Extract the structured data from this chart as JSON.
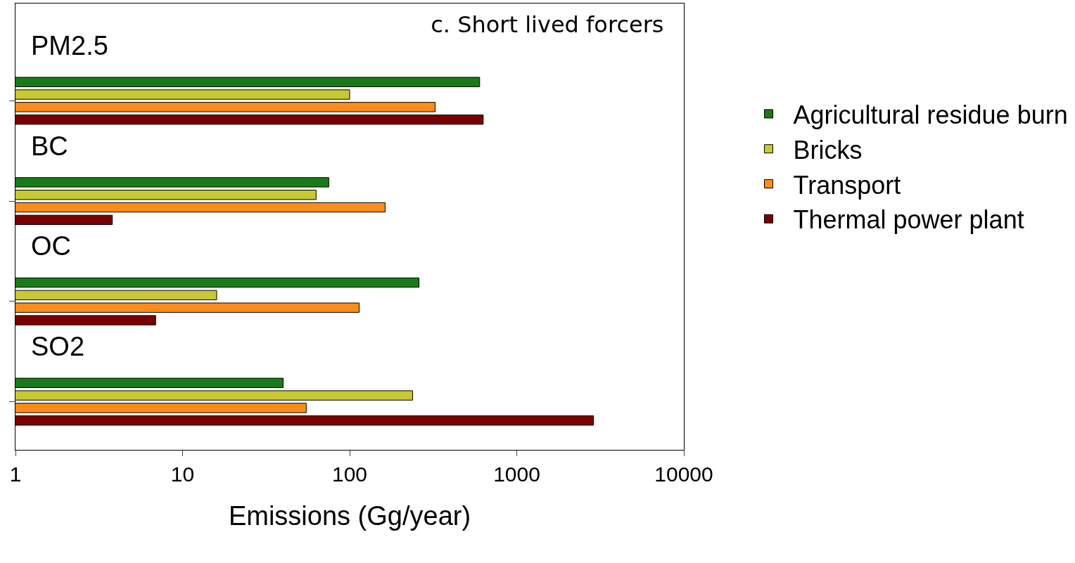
{
  "chart_data": {
    "type": "bar",
    "orientation": "horizontal",
    "title": "c. Short lived forcers",
    "xlabel": "Emissions (Gg/year)",
    "categories": [
      "PM2.5",
      "BC",
      "OC",
      "SO2"
    ],
    "series": [
      {
        "name": "Agricultural residue burn",
        "color": "#1a7a1a",
        "values": [
          600,
          75,
          260,
          40
        ]
      },
      {
        "name": "Bricks",
        "color": "#c8c832",
        "values": [
          100,
          63,
          16,
          238
        ]
      },
      {
        "name": "Transport",
        "color": "#ff8c1a",
        "values": [
          325,
          163,
          114,
          55
        ]
      },
      {
        "name": "Thermal power plant",
        "color": "#7a0000",
        "values": [
          630,
          3.8,
          6.9,
          2880
        ]
      }
    ],
    "log": "x",
    "xlim": [
      1,
      10000
    ],
    "xticks": [
      1,
      10,
      100,
      1000,
      10000
    ],
    "grid": false,
    "legend": "right"
  }
}
